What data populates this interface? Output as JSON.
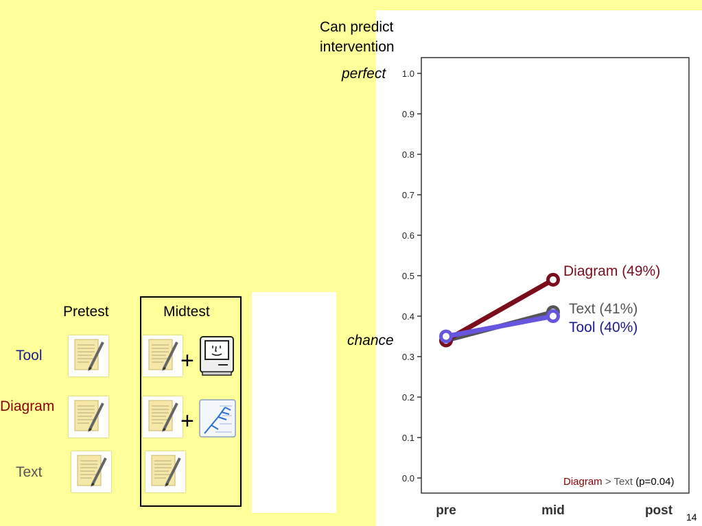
{
  "colors": {
    "diagram": "#7a0c1c",
    "text": "#555555",
    "tool": "#6655dd",
    "tool_label": "#1a1a8c"
  },
  "left_table": {
    "pretest_header": "Pretest",
    "midtest_header": "Midtest",
    "rows": [
      {
        "label": "Tool",
        "color": "#1a1a8c"
      },
      {
        "label": "Diagram",
        "color": "#8b0000"
      },
      {
        "label": "Text",
        "color": "#555555"
      }
    ],
    "plus": "+"
  },
  "annotations": {
    "ylabel_line1": "Can predict",
    "ylabel_line2": "intervention",
    "perfect": "perfect",
    "chance": "chance"
  },
  "series_labels": {
    "diagram": "Diagram (49%)",
    "text": "Text (41%)",
    "tool": "Tool (40%)"
  },
  "footnote": {
    "a": "Diagram",
    "gt": ">",
    "b": "Text",
    "p": "(p=0.04)"
  },
  "slide_number": "14",
  "chart_data": {
    "type": "line",
    "categories": [
      "pre",
      "mid",
      "post"
    ],
    "ylim": [
      0.0,
      1.0
    ],
    "yticks": [
      "0.0",
      "0.1",
      "0.2",
      "0.3",
      "0.4",
      "0.5",
      "0.6",
      "0.7",
      "0.8",
      "0.9",
      "1.0"
    ],
    "series": [
      {
        "name": "Text",
        "color": "#555555",
        "values": [
          0.34,
          0.41,
          null
        ]
      },
      {
        "name": "Diagram",
        "color": "#7a0c1c",
        "values": [
          0.34,
          0.49,
          null
        ]
      },
      {
        "name": "Tool",
        "color": "#6655dd",
        "values": [
          0.35,
          0.4,
          null
        ]
      }
    ]
  }
}
